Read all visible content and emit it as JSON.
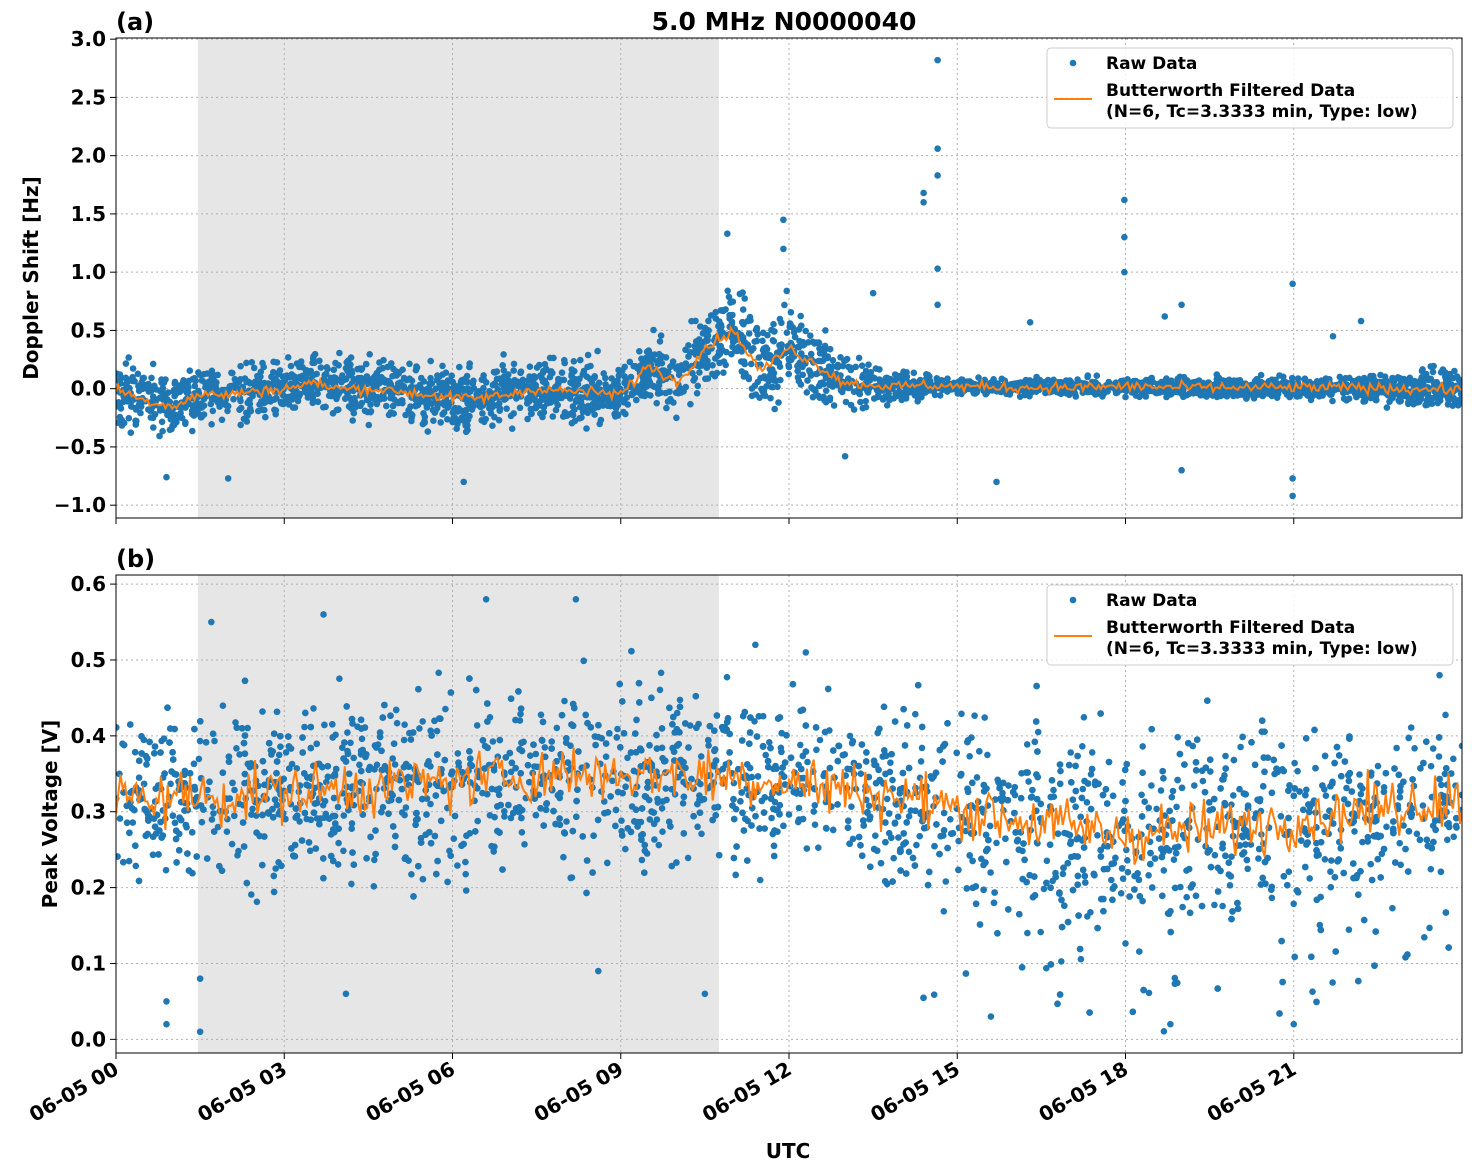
{
  "title": "5.0 MHz N0000040",
  "xlabel": "UTC",
  "x_tick_labels": [
    "06-05 00",
    "06-05 03",
    "06-05 06",
    "06-05 09",
    "06-05 12",
    "06-05 15",
    "06-05 18",
    "06-05 21"
  ],
  "legend": {
    "raw": "Raw Data",
    "filtered_line1": "Butterworth Filtered Data",
    "filtered_line2": "(N=6, Tc=3.3333 min, Type: low)"
  },
  "colors": {
    "raw": "#1f77b4",
    "filtered": "#ff7f0e",
    "shade": "#e6e6e6"
  },
  "chart_data": [
    {
      "type": "scatter",
      "panel_label": "(a)",
      "ylabel": "Doppler Shift [Hz]",
      "x_unit": "hours UTC on 06-05",
      "xlim": [
        0,
        24
      ],
      "ylim": [
        -1.11,
        3.01
      ],
      "y_ticks": [
        "−1.0",
        "−0.5",
        "0.0",
        "0.5",
        "1.0",
        "1.5",
        "2.0",
        "2.5",
        "3.0"
      ],
      "y_tick_values": [
        -1.0,
        -0.5,
        0.0,
        0.5,
        1.0,
        1.5,
        2.0,
        2.5,
        3.0
      ],
      "grid": true,
      "legend_position": "top-right",
      "shaded_interval_hours": [
        1.46,
        10.75
      ],
      "series": [
        {
          "name": "Butterworth Filtered Data",
          "type": "line",
          "x": [
            0,
            0.5,
            1,
            1.5,
            2,
            2.5,
            3,
            3.5,
            4,
            4.5,
            5,
            5.5,
            6,
            6.5,
            7,
            7.5,
            8,
            8.5,
            9,
            9.5,
            10,
            10.5,
            11,
            11.5,
            12,
            12.5,
            13,
            13.5,
            14,
            14.5,
            15,
            16,
            17,
            18,
            19,
            20,
            21,
            22,
            23,
            24
          ],
          "y": [
            0,
            -0.1,
            -0.15,
            -0.05,
            -0.05,
            -0.02,
            0,
            0.05,
            0,
            0,
            -0.02,
            -0.05,
            -0.08,
            -0.08,
            -0.05,
            0,
            -0.02,
            -0.03,
            -0.05,
            0.2,
            0.05,
            0.35,
            0.5,
            0.15,
            0.35,
            0.2,
            0.05,
            0.03,
            0.02,
            0.03,
            0.02,
            0.01,
            0.01,
            0.02,
            0.01,
            0.01,
            0.01,
            0.01,
            0,
            -0.01
          ]
        },
        {
          "name": "Raw Data",
          "type": "scatter",
          "spread_x": [
            0,
            2,
            9,
            10,
            11,
            12,
            13,
            14,
            15,
            22,
            24
          ],
          "spread_halfwidth": [
            0.35,
            0.3,
            0.3,
            0.35,
            0.45,
            0.45,
            0.3,
            0.15,
            0.07,
            0.12,
            0.25
          ],
          "outliers": [
            [
              14.65,
              2.82
            ],
            [
              14.65,
              2.06
            ],
            [
              14.65,
              1.83
            ],
            [
              14.4,
              1.68
            ],
            [
              14.4,
              1.6
            ],
            [
              11.9,
              1.45
            ],
            [
              11.9,
              1.2
            ],
            [
              17.98,
              1.62
            ],
            [
              17.98,
              1.3
            ],
            [
              17.98,
              1.0
            ],
            [
              20.98,
              0.9
            ],
            [
              20.98,
              -0.92
            ],
            [
              20.98,
              -0.77
            ],
            [
              15.7,
              -0.8
            ],
            [
              14.65,
              1.03
            ],
            [
              14.65,
              0.72
            ],
            [
              10.9,
              1.33
            ],
            [
              13.5,
              0.82
            ],
            [
              19.0,
              0.72
            ],
            [
              19.0,
              -0.7
            ],
            [
              18.7,
              0.62
            ],
            [
              16.3,
              0.57
            ],
            [
              22.2,
              0.58
            ],
            [
              21.7,
              0.45
            ],
            [
              13.0,
              -0.58
            ],
            [
              6.2,
              -0.8
            ],
            [
              2.0,
              -0.77
            ],
            [
              0.9,
              -0.76
            ]
          ]
        }
      ]
    },
    {
      "type": "scatter",
      "panel_label": "(b)",
      "ylabel": "Peak Voltage [V]",
      "x_unit": "hours UTC on 06-05",
      "xlim": [
        0,
        24
      ],
      "ylim": [
        -0.018,
        0.612
      ],
      "y_ticks": [
        "0.0",
        "0.1",
        "0.2",
        "0.3",
        "0.4",
        "0.5",
        "0.6"
      ],
      "y_tick_values": [
        0,
        0.1,
        0.2,
        0.3,
        0.4,
        0.5,
        0.6
      ],
      "grid": true,
      "legend_position": "top-right",
      "shaded_interval_hours": [
        1.46,
        10.75
      ],
      "series": [
        {
          "name": "Butterworth Filtered Data",
          "type": "line",
          "x": [
            0,
            2,
            4,
            6,
            8,
            10,
            12,
            14,
            16,
            18,
            20,
            22,
            24
          ],
          "y": [
            0.32,
            0.32,
            0.33,
            0.34,
            0.35,
            0.35,
            0.34,
            0.32,
            0.29,
            0.27,
            0.28,
            0.3,
            0.32
          ]
        },
        {
          "name": "Raw Data",
          "type": "scatter",
          "spread_x": [
            0,
            3,
            6,
            9,
            11,
            13,
            15,
            18,
            21,
            24
          ],
          "spread_halfwidth": [
            0.13,
            0.14,
            0.15,
            0.15,
            0.12,
            0.12,
            0.15,
            0.17,
            0.15,
            0.12
          ],
          "outliers": [
            [
              0.9,
              0.02
            ],
            [
              0.9,
              0.05
            ],
            [
              1.5,
              0.01
            ],
            [
              1.5,
              0.08
            ],
            [
              3.7,
              0.56
            ],
            [
              8.2,
              0.58
            ],
            [
              6.6,
              0.58
            ],
            [
              4.1,
              0.06
            ],
            [
              8.6,
              0.09
            ],
            [
              10.5,
              0.06
            ],
            [
              11.4,
              0.52
            ],
            [
              12.3,
              0.51
            ],
            [
              15.6,
              0.03
            ],
            [
              18.8,
              0.02
            ],
            [
              21.0,
              0.02
            ],
            [
              23.6,
              0.48
            ],
            [
              1.7,
              0.55
            ]
          ]
        }
      ]
    }
  ]
}
